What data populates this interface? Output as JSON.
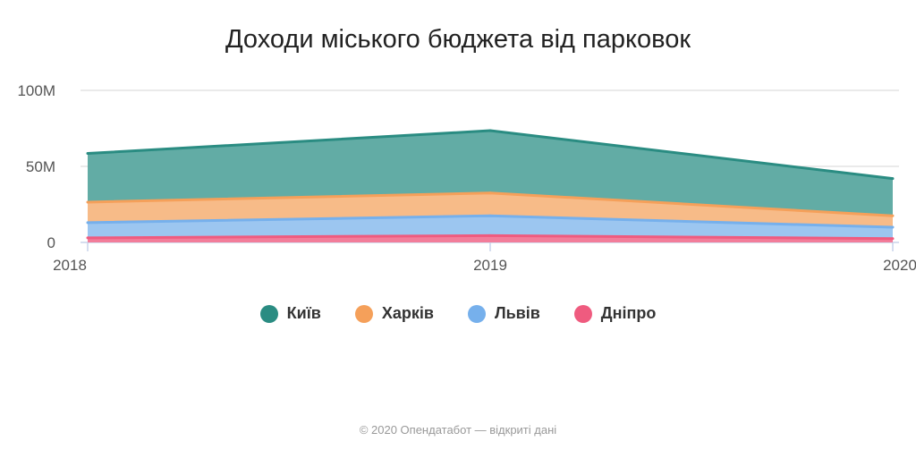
{
  "chart_data": {
    "type": "area",
    "stacked": true,
    "title": "Доходи міського бюджета від парковок",
    "categories": [
      "2018",
      "2019",
      "2020"
    ],
    "ylim": [
      0,
      100
    ],
    "yticks": [
      {
        "value": 0,
        "label": "0"
      },
      {
        "value": 50,
        "label": "50M"
      },
      {
        "value": 100,
        "label": "100M"
      }
    ],
    "unit": "M",
    "grid": true,
    "legend_position": "bottom",
    "series": [
      {
        "name": "Дніпро",
        "values": [
          3,
          4.5,
          2.5
        ],
        "color": "#ef5b7f",
        "fill": "#f27d9a"
      },
      {
        "name": "Львів",
        "values": [
          10,
          13,
          7.5
        ],
        "color": "#76b0ec",
        "fill": "#9cc6f0"
      },
      {
        "name": "Харків",
        "values": [
          13.5,
          15,
          7.5
        ],
        "color": "#f5a05a",
        "fill": "#f7bb88"
      },
      {
        "name": "Київ",
        "values": [
          32,
          41,
          24.5
        ],
        "color": "#2a8c82",
        "fill": "#62aca5"
      }
    ],
    "legend_order": [
      "Київ",
      "Харків",
      "Львів",
      "Дніпро"
    ]
  },
  "footer": "© 2020 Опендатабот — відкриті дані"
}
